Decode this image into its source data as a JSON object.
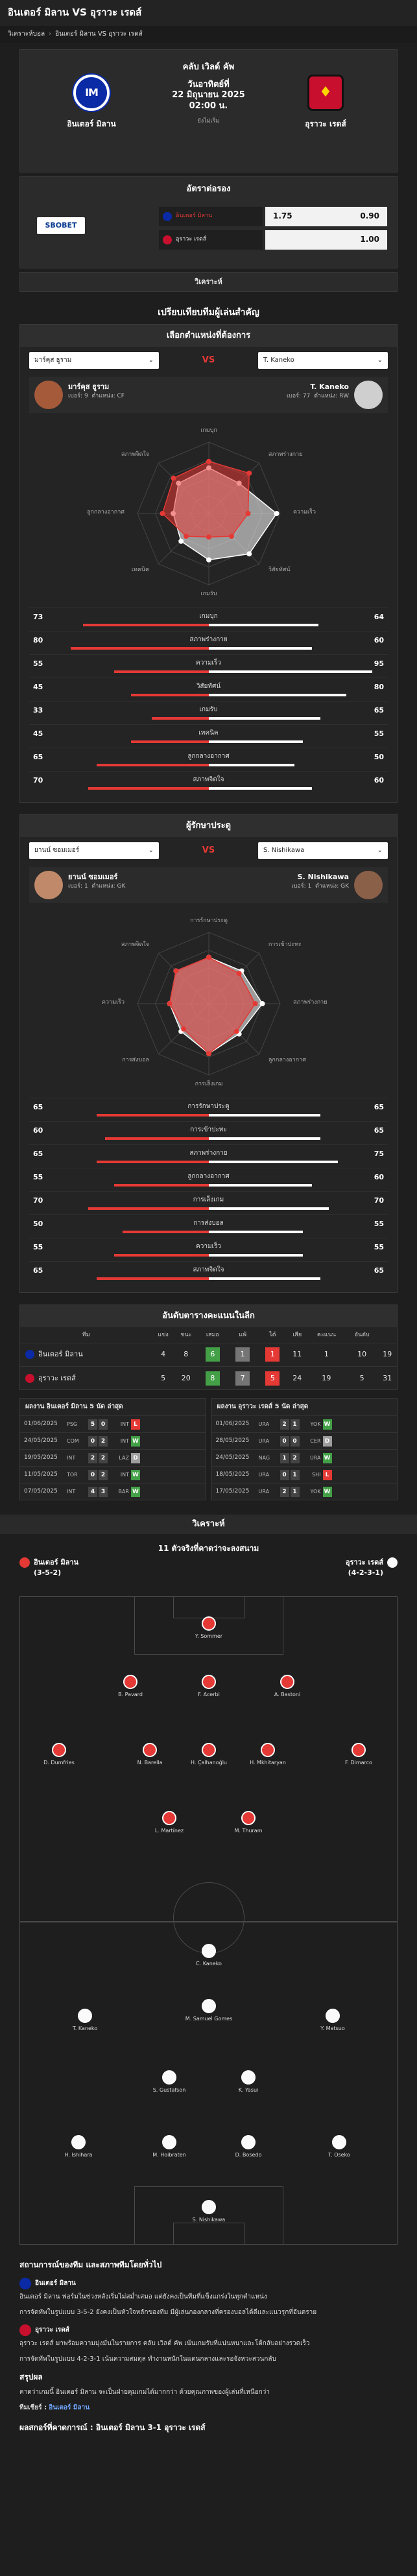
{
  "header": {
    "title": "อินเตอร์ มิลาน VS อุราวะ เรดส์"
  },
  "breadcrumb": {
    "home": "วิเคราะห์บอล",
    "current": "อินเตอร์ มิลาน VS อุราวะ เรดส์"
  },
  "match": {
    "league": "คลับ เวิลด์ คัพ",
    "date": "วันอาทิตย์ที่",
    "date2": "22 มิถุนายน 2025",
    "time": "02:00 น.",
    "status": "ยังไม่เริ่ม",
    "home": "อินเตอร์ มิลาน",
    "away": "อุราวะ เรดส์",
    "home_logo_text": "IM",
    "away_logo_text": "♦"
  },
  "odds": {
    "title": "อัตราต่อรอง",
    "bookmaker": "SBOBET",
    "rows": [
      {
        "team": "อินเตอร์ มิลาน",
        "handicap": "1.75",
        "price": "0.90"
      },
      {
        "team": "อุราวะ เรดส์",
        "handicap": "",
        "price": "1.00"
      }
    ]
  },
  "strip": {
    "label": "วิเคราะห์"
  },
  "compare": {
    "title": "เปรียบเทียบทีมผู้เล่นสำคัญ",
    "outfield": {
      "title": "เลือกตำแหน่งที่ต้องการ",
      "left_select": "มาร์คุส ธูราม",
      "right_select": "T. Kaneko",
      "vs": "VS",
      "left": {
        "name": "มาร์คุส ธูราม",
        "number_label": "เบอร์:",
        "number": "9",
        "pos_label": "ตำแหน่ง:",
        "pos": "CF"
      },
      "right": {
        "name": "T. Kaneko",
        "number_label": "เบอร์:",
        "number": "77",
        "pos_label": "ตำแหน่ง:",
        "pos": "RW"
      },
      "stats": [
        {
          "label": "เกมบุก",
          "l": 73,
          "r": 64
        },
        {
          "label": "สภาพร่างกาย",
          "l": 80,
          "r": 60
        },
        {
          "label": "ความเร็ว",
          "l": 55,
          "r": 95
        },
        {
          "label": "วิสัยทัศน์",
          "l": 45,
          "r": 80
        },
        {
          "label": "เกมรับ",
          "l": 33,
          "r": 65
        },
        {
          "label": "เทคนิค",
          "l": 45,
          "r": 55
        },
        {
          "label": "ลูกกลางอากาศ",
          "l": 65,
          "r": 50
        },
        {
          "label": "สภาพจิตใจ",
          "l": 70,
          "r": 60
        }
      ]
    },
    "keeper": {
      "title": "ผู้รักษาประตู",
      "left_select": "ยานน์ ซอมเมอร์",
      "right_select": "S. Nishikawa",
      "vs": "VS",
      "left": {
        "name": "ยานน์ ซอมเมอร์",
        "number_label": "เบอร์:",
        "number": "1",
        "pos_label": "ตำแหน่ง:",
        "pos": "GK"
      },
      "right": {
        "name": "S. Nishikawa",
        "number_label": "เบอร์:",
        "number": "1",
        "pos_label": "ตำแหน่ง:",
        "pos": "GK"
      },
      "stats": [
        {
          "label": "การรักษาประตู",
          "l": 65,
          "r": 65
        },
        {
          "label": "การเข้าปะทะ",
          "l": 60,
          "r": 65
        },
        {
          "label": "สภาพร่างกาย",
          "l": 65,
          "r": 75
        },
        {
          "label": "ลูกกลางอากาศ",
          "l": 55,
          "r": 60
        },
        {
          "label": "การเล็งเกม",
          "l": 70,
          "r": 70
        },
        {
          "label": "การส่งบอล",
          "l": 50,
          "r": 55
        },
        {
          "label": "ความเร็ว",
          "l": 55,
          "r": 55
        },
        {
          "label": "สภาพจิตใจ",
          "l": 65,
          "r": 65
        }
      ]
    }
  },
  "standings": {
    "title": "อันดับตารางคะแนนในลีก",
    "headers": [
      "ทีม",
      "แข่ง",
      "ชนะ",
      "เสมอ",
      "แพ้",
      "ได้",
      "เสีย",
      "คะแนน",
      "อันดับ"
    ],
    "rows": [
      {
        "team": "อินเตอร์ มิลาน",
        "p": "4",
        "a": "8",
        "b": "6",
        "c": "1",
        "d": "1",
        "e": "11",
        "f": "1",
        "g": "10",
        "h": "19"
      },
      {
        "team": "อุราวะ เรดส์",
        "p": "5",
        "a": "20",
        "b": "8",
        "c": "7",
        "d": "5",
        "e": "24",
        "f": "19",
        "g": "5",
        "h": "31"
      }
    ]
  },
  "form": {
    "home_title": "ผลงาน อินเตอร์ มิลาน 5 นัด ล่าสุด",
    "away_title": "ผลงาน อุราวะ เรดส์ 5 นัด ล่าสุด",
    "home": [
      {
        "date": "01/06/2025",
        "t1": "PSG",
        "s1": "5",
        "s2": "0",
        "t2": "INT",
        "r": "L"
      },
      {
        "date": "24/05/2025",
        "t1": "COM",
        "s1": "0",
        "s2": "2",
        "t2": "INT",
        "r": "W"
      },
      {
        "date": "19/05/2025",
        "t1": "INT",
        "s1": "2",
        "s2": "2",
        "t2": "LAZ",
        "r": "D"
      },
      {
        "date": "11/05/2025",
        "t1": "TOR",
        "s1": "0",
        "s2": "2",
        "t2": "INT",
        "r": "W"
      },
      {
        "date": "07/05/2025",
        "t1": "INT",
        "s1": "4",
        "s2": "3",
        "t2": "BAR",
        "r": "W"
      }
    ],
    "away": [
      {
        "date": "01/06/2025",
        "t1": "URA",
        "s1": "2",
        "s2": "1",
        "t2": "YOK",
        "r": "W"
      },
      {
        "date": "28/05/2025",
        "t1": "URA",
        "s1": "0",
        "s2": "0",
        "t2": "CER",
        "r": "D"
      },
      {
        "date": "24/05/2025",
        "t1": "NAG",
        "s1": "1",
        "s2": "2",
        "t2": "URA",
        "r": "W"
      },
      {
        "date": "18/05/2025",
        "t1": "URA",
        "s1": "0",
        "s2": "1",
        "t2": "SHI",
        "r": "L"
      },
      {
        "date": "17/05/2025",
        "t1": "URA",
        "s1": "2",
        "s2": "1",
        "t2": "YOK",
        "r": "W"
      }
    ]
  },
  "analysis": {
    "title": "วิเคราะห์"
  },
  "lineup": {
    "title": "11 ตัวจริงที่คาดว่าจะลงสนาม",
    "home": "อินเตอร์ มิลาน",
    "home_form": "(3-5-2)",
    "away": "อุราวะ เรดส์",
    "away_form": "(4-2-3-1)",
    "home_players": [
      "Y. Sommer",
      "B. Pavard",
      "F. Acerbi",
      "A. Bastoni",
      "D. Dumfries",
      "N. Barella",
      "H. Çalhanoğlu",
      "H. Mkhitaryan",
      "F. Dimarco",
      "L. Martínez",
      "M. Thuram"
    ],
    "away_players": [
      "S. Nishikawa",
      "H. Ishihara",
      "M. Hoibraten",
      "D. Bosedo",
      "T. Oseko",
      "S. Gustafson",
      "K. Yasui",
      "T. Kaneko",
      "M. Samuel Gomes",
      "Y. Matsuo",
      "C. Kaneko"
    ]
  },
  "article": {
    "title": "สถานการณ์ของทีม และสภาพทีมโดยทั่วไป",
    "home_name": "อินเตอร์ มิลาน",
    "home_p1": "อินเตอร์ มิลาน ฟอร์มในช่วงหลังเริ่มไม่สม่ำเสมอ แต่ยังคงเป็นทีมที่แข็งแกร่งในทุกตำแหน่ง",
    "home_p2": "การจัดทัพในรูปแบบ 3-5-2 ยังคงเป็นหัวใจหลักของทีม มีผู้เล่นกองกลางที่ครองบอลได้ดีและแนวรุกที่อันตราย",
    "away_name": "อุราวะ เรดส์",
    "away_p1": "อุราวะ เรดส์ มาพร้อมความมุ่งมั่นในรายการ คลับ เวิลด์ คัพ เน้นเกมรับที่แน่นหนาและโต้กลับอย่างรวดเร็ว",
    "away_p2": "การจัดทัพในรูปแบบ 4-2-3-1 เน้นความสมดุล ทำงานหนักในแดนกลางและรอจังหวะสวนกลับ",
    "summary_title": "สรุปผล",
    "summary": "คาดว่าเกมนี้ อินเตอร์ มิลาน จะเป็นฝ่ายคุมเกมได้มากกว่า ด้วยคุณภาพของผู้เล่นที่เหนือกว่า",
    "pick_label": "ทีมเชียร์ :",
    "pick": "อินเตอร์ มิลาน",
    "final": "ผลสกอร์ที่คาดการณ์ : อินเตอร์ มิลาน 3-1 อุราวะ เรดส์"
  }
}
